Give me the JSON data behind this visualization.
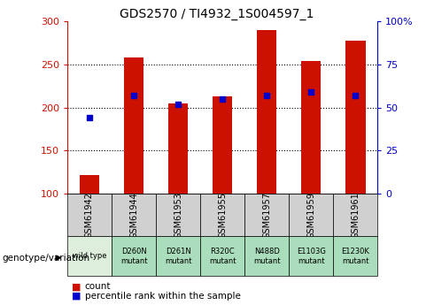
{
  "title": "GDS2570 / TI4932_1S004597_1",
  "samples": [
    "GSM61942",
    "GSM61944",
    "GSM61953",
    "GSM61955",
    "GSM61957",
    "GSM61959",
    "GSM61961"
  ],
  "counts": [
    122,
    258,
    205,
    213,
    290,
    254,
    278
  ],
  "percentile_ranks": [
    44,
    57,
    52,
    55,
    57,
    59,
    57
  ],
  "genotypes": [
    "wild type",
    "D260N\nmutant",
    "D261N\nmutant",
    "R320C\nmutant",
    "N488D\nmutant",
    "E1103G\nmutant",
    "E1230K\nmutant"
  ],
  "ymin": 100,
  "ymax": 300,
  "y_left_ticks": [
    100,
    150,
    200,
    250,
    300
  ],
  "y_right_ticks": [
    0,
    25,
    50,
    75,
    100
  ],
  "bar_color": "#cc1100",
  "marker_color": "#0000cc",
  "bg_color": "#ffffff",
  "left_label_color": "#cc1100",
  "right_label_color": "#0000cc",
  "gray_box_color": "#d0d0d0",
  "green_box_color": "#aaddbb",
  "wildtype_box_color": "#ddeedd",
  "bar_width": 0.45,
  "legend_label_count": "count",
  "legend_label_pct": "percentile rank within the sample",
  "grid_yticks": [
    150,
    200,
    250
  ]
}
